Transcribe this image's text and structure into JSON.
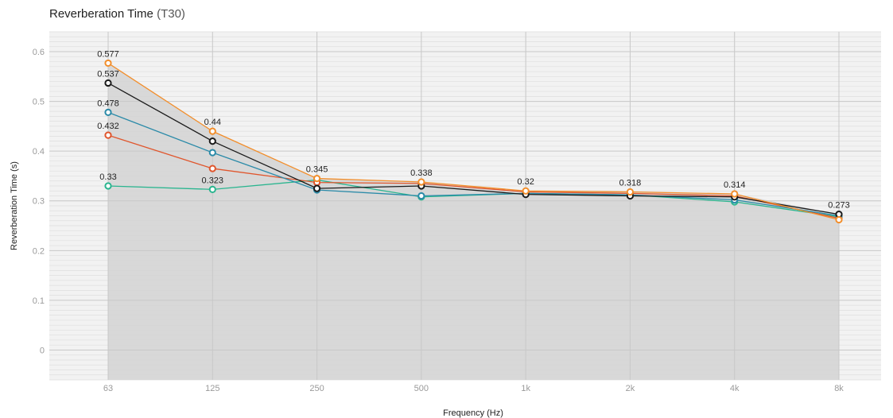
{
  "chart_data": {
    "type": "line",
    "title": "Reverberation Time",
    "title_suffix": "(T30)",
    "xlabel": "Frequency (Hz)",
    "ylabel": "Reverberation Time (s)",
    "categories": [
      "63",
      "125",
      "250",
      "500",
      "1k",
      "2k",
      "4k",
      "8k"
    ],
    "ylim": [
      -0.06,
      0.64
    ],
    "yticks": [
      0,
      0.1,
      0.2,
      0.3,
      0.4,
      0.5,
      0.6
    ],
    "ytick_labels": [
      "0",
      "0.1",
      "0.2",
      "0.3",
      "0.4",
      "0.5",
      "0.6"
    ],
    "grid": true,
    "series": [
      {
        "color": "#f28e2b",
        "values": [
          0.577,
          0.44,
          0.345,
          0.338,
          0.32,
          0.318,
          0.314,
          0.262
        ]
      },
      {
        "color": "#1a1a1a",
        "values": [
          0.537,
          0.42,
          0.325,
          0.33,
          0.313,
          0.31,
          0.308,
          0.273
        ]
      },
      {
        "color": "#2a8aa8",
        "values": [
          0.478,
          0.397,
          0.322,
          0.31,
          0.315,
          0.312,
          0.302,
          0.27
        ]
      },
      {
        "color": "#e0562d",
        "values": [
          0.432,
          0.365,
          0.337,
          0.335,
          0.318,
          0.315,
          0.31,
          0.265
        ]
      },
      {
        "color": "#2ab58f",
        "values": [
          0.33,
          0.323,
          0.342,
          0.308,
          0.315,
          0.312,
          0.298,
          0.268
        ]
      }
    ],
    "data_labels": [
      {
        "category_index": 0,
        "value": 0.577,
        "text": "0.577"
      },
      {
        "category_index": 0,
        "value": 0.537,
        "text": "0.537"
      },
      {
        "category_index": 0,
        "value": 0.478,
        "text": "0.478"
      },
      {
        "category_index": 0,
        "value": 0.432,
        "text": "0.432"
      },
      {
        "category_index": 0,
        "value": 0.33,
        "text": "0.33"
      },
      {
        "category_index": 1,
        "value": 0.44,
        "text": "0.44"
      },
      {
        "category_index": 1,
        "value": 0.323,
        "text": "0.323"
      },
      {
        "category_index": 2,
        "value": 0.345,
        "text": "0.345"
      },
      {
        "category_index": 3,
        "value": 0.338,
        "text": "0.338"
      },
      {
        "category_index": 4,
        "value": 0.32,
        "text": "0.32"
      },
      {
        "category_index": 5,
        "value": 0.318,
        "text": "0.318"
      },
      {
        "category_index": 6,
        "value": 0.314,
        "text": "0.314"
      },
      {
        "category_index": 7,
        "value": 0.273,
        "text": "0.273"
      }
    ],
    "colors": {
      "panel_background": "#f2f2f2",
      "area_fill": "#d4d4d4",
      "grid_minor": "#dedede",
      "grid_major": "#c8c8c8"
    }
  }
}
